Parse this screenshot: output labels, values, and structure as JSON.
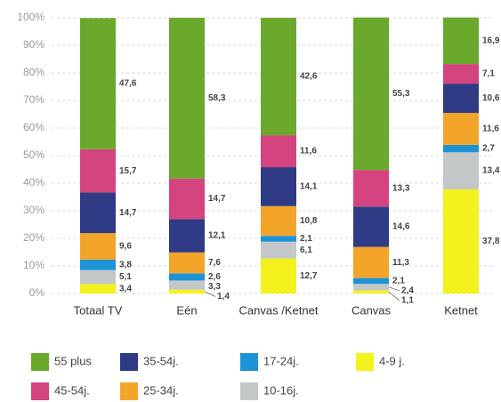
{
  "chart_data": {
    "type": "stacked_bar",
    "categories": [
      "Totaal TV",
      "Eén",
      "Canvas /Ketnet",
      "Canvas",
      "Ketnet"
    ],
    "series": [
      {
        "name": "4-9 j.",
        "color": "#f4f21c",
        "values": [
          3.4,
          1.4,
          12.7,
          1.1,
          37.8
        ],
        "value_labels": [
          "3,4",
          "1,4",
          "12,7",
          "1,1",
          "37,8"
        ]
      },
      {
        "name": "10-16j.",
        "color": "#c3c7c8",
        "values": [
          5.1,
          3.3,
          6.1,
          2.4,
          13.4
        ],
        "value_labels": [
          "5,1",
          "3,3",
          "6,1",
          "2,4",
          "13,4"
        ]
      },
      {
        "name": "17-24j.",
        "color": "#1d93d6",
        "values": [
          3.8,
          2.6,
          2.1,
          2.1,
          2.7
        ],
        "value_labels": [
          "3,8",
          "2,6",
          "2,1",
          "2,1",
          "2,7"
        ]
      },
      {
        "name": "25-34j.",
        "color": "#f3a52a",
        "values": [
          9.6,
          7.6,
          10.8,
          11.3,
          11.6
        ],
        "value_labels": [
          "9,6",
          "7,6",
          "10,8",
          "11,3",
          "11,6"
        ]
      },
      {
        "name": "35-54j.",
        "color": "#2f3b85",
        "values": [
          14.7,
          12.1,
          14.1,
          14.6,
          10.6
        ],
        "value_labels": [
          "14,7",
          "12,1",
          "14,1",
          "14,6",
          "10,6"
        ]
      },
      {
        "name": "45-54j.",
        "color": "#d4447e",
        "values": [
          15.7,
          14.7,
          11.6,
          13.3,
          7.1
        ],
        "value_labels": [
          "15,7",
          "14,7",
          "11,6",
          "13,3",
          "7,1"
        ]
      },
      {
        "name": "55 plus",
        "color": "#6aa92c",
        "values": [
          47.6,
          58.3,
          42.6,
          55.3,
          16.9
        ],
        "value_labels": [
          "47,6",
          "58,3",
          "42,6",
          "55,3",
          "16,9"
        ]
      }
    ],
    "ylim": [
      0,
      100
    ],
    "yticks": [
      {
        "value": 0,
        "label": "0%"
      },
      {
        "value": 10,
        "label": "10%"
      },
      {
        "value": 20,
        "label": "20%"
      },
      {
        "value": 30,
        "label": "30%"
      },
      {
        "value": 40,
        "label": "40%"
      },
      {
        "value": 50,
        "label": "50%"
      },
      {
        "value": 60,
        "label": "60%"
      },
      {
        "value": 70,
        "label": "70%"
      },
      {
        "value": 80,
        "label": "80%"
      },
      {
        "value": 90,
        "label": "90%"
      },
      {
        "value": 100,
        "label": "100%"
      }
    ],
    "grid": true
  }
}
